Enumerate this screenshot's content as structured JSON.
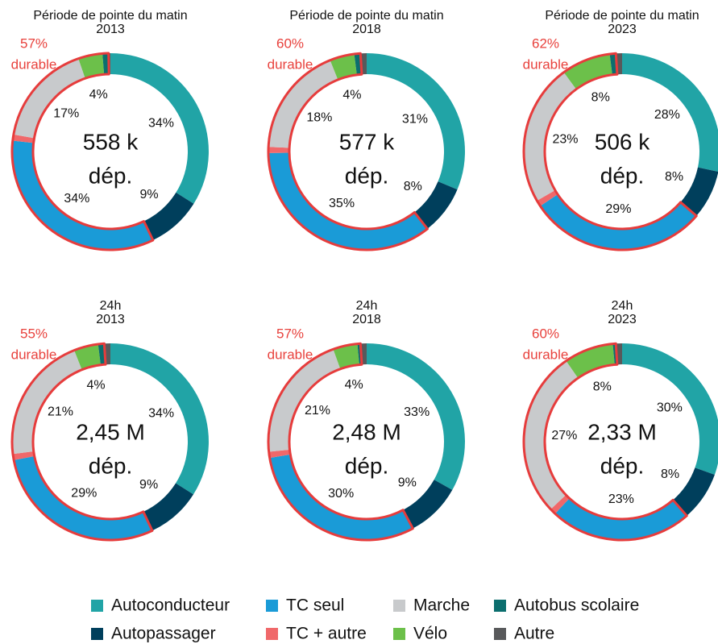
{
  "legend": {
    "categories": [
      "Autoconducteur",
      "Autopassager",
      "TC seul",
      "TC + autre",
      "Marche",
      "Vélo",
      "Autobus scolaire",
      "Autre"
    ],
    "colors": [
      "#21a4a6",
      "#003f5c",
      "#1a9bd7",
      "#f0686a",
      "#c8cacc",
      "#6cc04a",
      "#0b6e6e",
      "#58595b"
    ],
    "sustainable_segments": [
      2,
      3,
      4,
      5,
      6
    ],
    "sustainable_color": "#e63c3c"
  },
  "chart_data": [
    {
      "type": "donut",
      "title": "Période de pointe du matin",
      "subtitle": "2013",
      "center_label": "558 k",
      "center_sublabel": "dép.",
      "sustainable_value": 57,
      "sustainable_label": "57%",
      "sustainable_text": "durable",
      "values": [
        34,
        9,
        34,
        1,
        17,
        4,
        1,
        0.3
      ],
      "value_labels": [
        "34%",
        "9%",
        "34%",
        null,
        "17%",
        "4%",
        null,
        null
      ]
    },
    {
      "type": "donut",
      "title": "Période de pointe du matin",
      "subtitle": "2018",
      "center_label": "577 k",
      "center_sublabel": "dép.",
      "sustainable_value": 60,
      "sustainable_label": "60%",
      "sustainable_text": "durable",
      "values": [
        31,
        8,
        35,
        1,
        18,
        4,
        1,
        1
      ],
      "value_labels": [
        "31%",
        "8%",
        "35%",
        null,
        "18%",
        "4%",
        null,
        null
      ]
    },
    {
      "type": "donut",
      "title": "Période de pointe du matin",
      "subtitle": "2023",
      "center_label": "506 k",
      "center_sublabel": "dép.",
      "sustainable_value": 62,
      "sustainable_label": "62%",
      "sustainable_text": "durable",
      "values": [
        28,
        8,
        29,
        1,
        23,
        8,
        1,
        1
      ],
      "value_labels": [
        "28%",
        "8%",
        "29%",
        null,
        "23%",
        "8%",
        null,
        null
      ]
    },
    {
      "type": "donut",
      "title": "24h",
      "subtitle": "2013",
      "center_label": "2,45 M",
      "center_sublabel": "dép.",
      "sustainable_value": 55,
      "sustainable_label": "55%",
      "sustainable_text": "durable",
      "values": [
        34,
        9,
        29,
        1,
        21,
        4,
        1,
        1
      ],
      "value_labels": [
        "34%",
        "9%",
        "29%",
        null,
        "21%",
        "4%",
        null,
        null
      ]
    },
    {
      "type": "donut",
      "title": "24h",
      "subtitle": "2018",
      "center_label": "2,48 M",
      "center_sublabel": "dép.",
      "sustainable_value": 57,
      "sustainable_label": "57%",
      "sustainable_text": "durable",
      "values": [
        33,
        9,
        30,
        1,
        21,
        4,
        0.5,
        1
      ],
      "value_labels": [
        "33%",
        "9%",
        "30%",
        null,
        "21%",
        "4%",
        null,
        null
      ]
    },
    {
      "type": "donut",
      "title": "24h",
      "subtitle": "2023",
      "center_label": "2,33 M",
      "center_sublabel": "dép.",
      "sustainable_value": 60,
      "sustainable_label": "60%",
      "sustainable_text": "durable",
      "values": [
        30,
        8,
        23,
        1,
        27,
        8,
        0.5,
        1
      ],
      "value_labels": [
        "30%",
        "8%",
        "23%",
        null,
        "27%",
        "8%",
        null,
        null
      ]
    }
  ]
}
